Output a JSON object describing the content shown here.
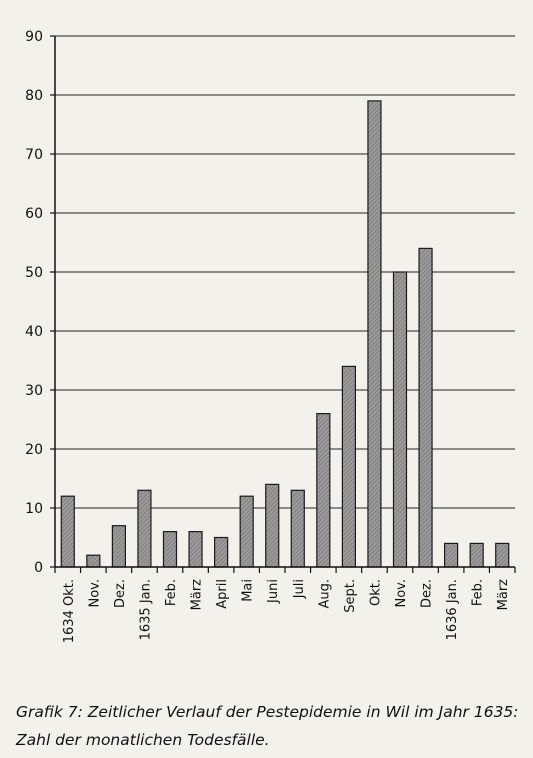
{
  "caption": {
    "line1": "Grafik 7: Zeitlicher Verlauf der Pestepidemie in Wil im Jahr 1635:",
    "line2": "Zahl der monatlichen Todesfälle."
  },
  "chart_data": {
    "type": "bar",
    "categories": [
      "1634 Okt.",
      "Nov.",
      "Dez.",
      "1635 Jan.",
      "Feb.",
      "März",
      "April",
      "Mai",
      "Juni",
      "Juli",
      "Aug.",
      "Sept.",
      "Okt.",
      "Nov.",
      "Dez.",
      "1636 Jan.",
      "Feb.",
      "März"
    ],
    "values": [
      12,
      2,
      7,
      13,
      6,
      6,
      5,
      12,
      14,
      13,
      26,
      34,
      79,
      50,
      54,
      4,
      4,
      4
    ],
    "ylim": [
      0,
      90
    ],
    "yticks": [
      0,
      10,
      20,
      30,
      40,
      50,
      60,
      70,
      80,
      90
    ],
    "grid": true,
    "bar_color": "#8a8a8a"
  }
}
